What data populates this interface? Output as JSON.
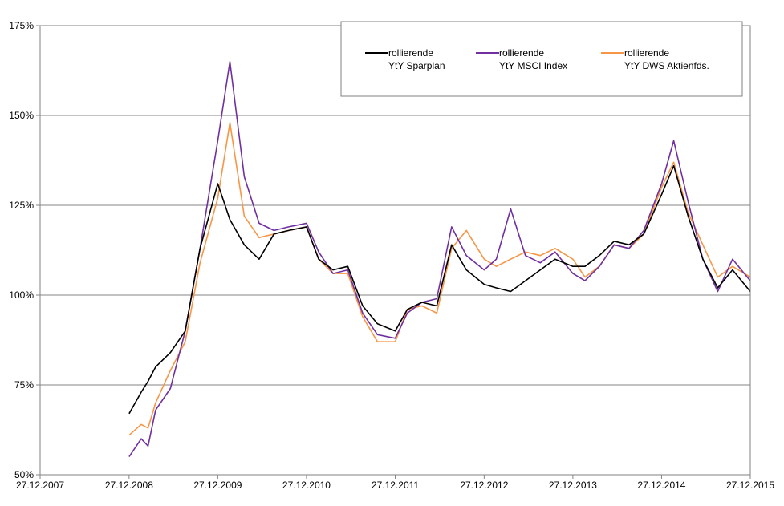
{
  "chart_data": {
    "type": "line",
    "title": "",
    "xlabel": "",
    "ylabel": "",
    "x_type": "date",
    "xlim": [
      "2007-12-27",
      "2015-12-27"
    ],
    "ylim": [
      50,
      175
    ],
    "y_unit": "%",
    "x_ticks": [
      "27.12.2007",
      "27.12.2008",
      "27.12.2009",
      "27.12.2010",
      "27.12.2011",
      "27.12.2012",
      "27.12.2013",
      "27.12.2014",
      "27.12.2015"
    ],
    "y_ticks": [
      50,
      75,
      100,
      125,
      150,
      175
    ],
    "y_tick_labels": [
      "50%",
      "75%",
      "100%",
      "125%",
      "150%",
      "175%"
    ],
    "grid": "horizontal",
    "legend_position": "top-right",
    "x": [
      "2008-12-27",
      "2009-02-15",
      "2009-03-15",
      "2009-04-15",
      "2009-06-15",
      "2009-08-15",
      "2009-10-15",
      "2009-12-27",
      "2010-02-15",
      "2010-04-15",
      "2010-06-15",
      "2010-08-15",
      "2010-10-15",
      "2010-12-27",
      "2011-02-15",
      "2011-04-15",
      "2011-06-15",
      "2011-08-15",
      "2011-10-15",
      "2011-12-27",
      "2012-02-15",
      "2012-04-15",
      "2012-06-15",
      "2012-08-15",
      "2012-10-15",
      "2012-12-27",
      "2013-02-15",
      "2013-04-15",
      "2013-06-15",
      "2013-08-15",
      "2013-10-15",
      "2013-12-27",
      "2014-02-15",
      "2014-04-15",
      "2014-06-15",
      "2014-08-15",
      "2014-10-15",
      "2014-12-27",
      "2015-02-15",
      "2015-04-15",
      "2015-06-15",
      "2015-08-15",
      "2015-10-15",
      "2015-12-27"
    ],
    "series": [
      {
        "name": "rollierende YtY Sparplan",
        "color": "#000000",
        "values": [
          67,
          73,
          76,
          80,
          84,
          90,
          113,
          131,
          121,
          114,
          110,
          117,
          118,
          119,
          110,
          107,
          108,
          97,
          92,
          90,
          96,
          98,
          97,
          114,
          107,
          103,
          102,
          101,
          104,
          107,
          110,
          108,
          108,
          111,
          115,
          114,
          117,
          128,
          136,
          122,
          110,
          102,
          107,
          101
        ]
      },
      {
        "name": "rollierende YtY MSCI Index",
        "color": "#7030A0",
        "values": [
          55,
          60,
          58,
          68,
          74,
          90,
          113,
          143,
          165,
          133,
          120,
          118,
          119,
          120,
          112,
          106,
          107,
          95,
          89,
          88,
          95,
          98,
          99,
          119,
          111,
          107,
          110,
          124,
          111,
          109,
          112,
          106,
          104,
          108,
          114,
          113,
          118,
          131,
          143,
          126,
          110,
          101,
          110,
          104
        ]
      },
      {
        "name": "rollierende YtY DWS Aktienfds.",
        "color": "#F79646",
        "values": [
          61,
          64,
          63,
          70,
          79,
          87,
          109,
          127,
          148,
          122,
          116,
          117,
          118,
          119,
          110,
          106,
          106,
          94,
          87,
          87,
          96,
          97,
          95,
          113,
          118,
          110,
          108,
          110,
          112,
          111,
          113,
          110,
          105,
          108,
          114,
          113,
          117,
          130,
          137,
          123,
          114,
          105,
          108,
          105
        ]
      }
    ]
  }
}
